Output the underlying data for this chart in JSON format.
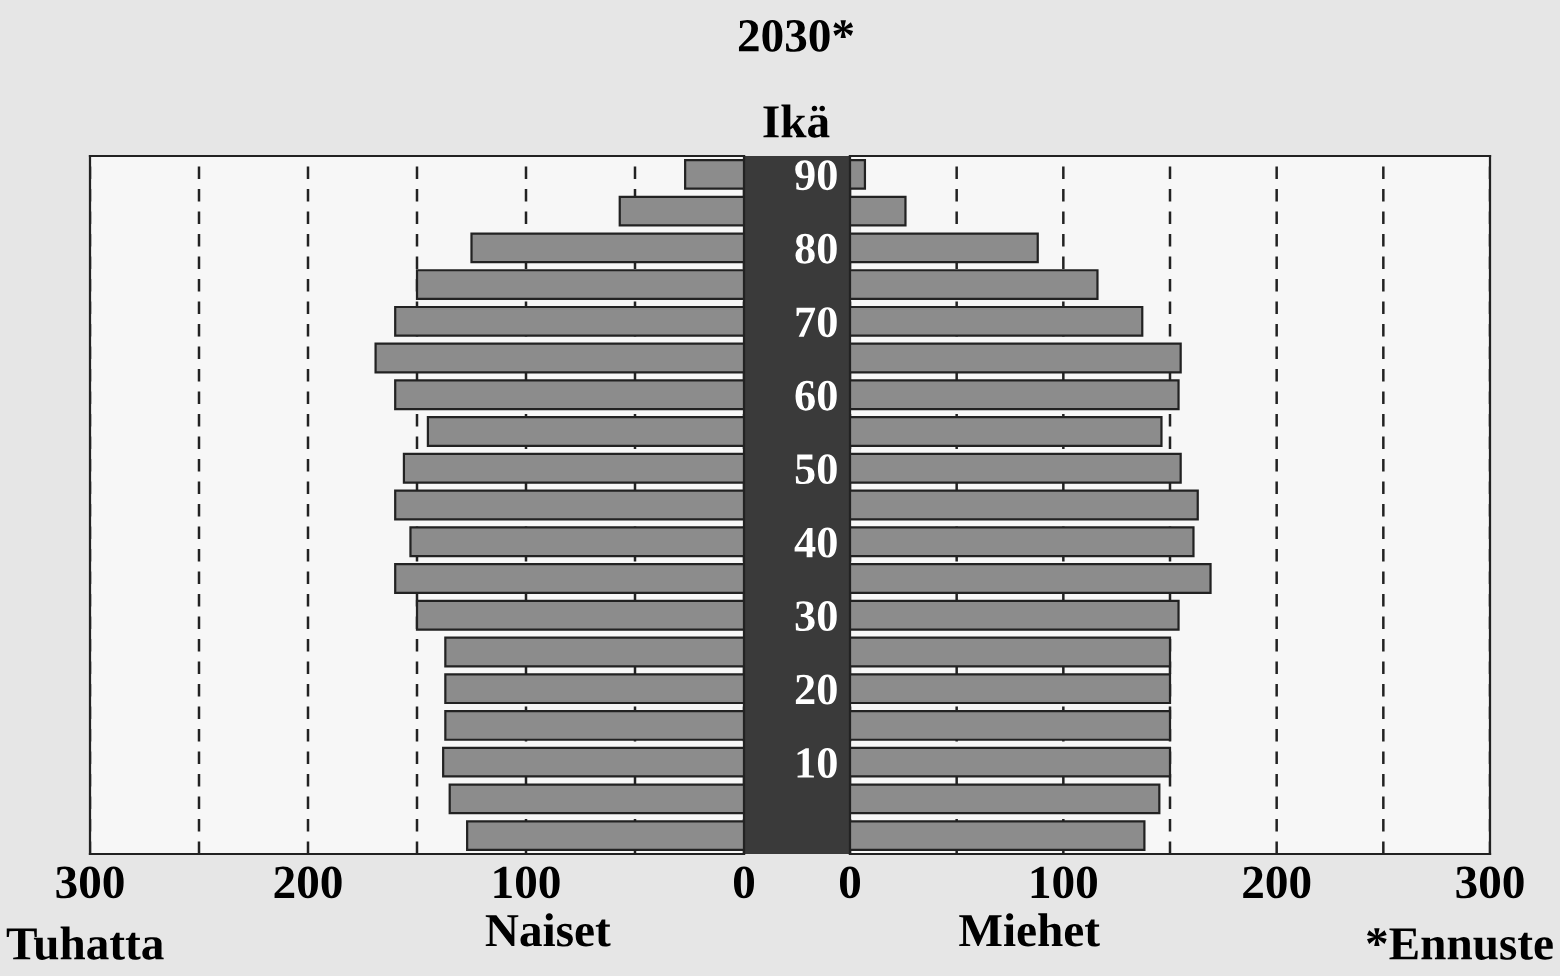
{
  "chart_data": [
    {
      "type": "bar",
      "orientation": "horizontal",
      "title": "2030*",
      "ylabel": "Ikä",
      "xlabel": "Naiset",
      "annotations": [
        "Tuhatta"
      ],
      "categories": [
        "90",
        null,
        "80",
        null,
        "70",
        null,
        "60",
        null,
        "50",
        null,
        "40",
        null,
        "30",
        null,
        "20",
        null,
        "10",
        null,
        null
      ],
      "values": [
        27,
        57,
        125,
        150,
        160,
        169,
        160,
        145,
        156,
        160,
        153,
        160,
        150,
        137,
        137,
        137,
        138,
        135,
        127
      ],
      "color": "#8c8c8c",
      "xlim": [
        300,
        0
      ],
      "xticks": [
        {
          "value": 300,
          "label": "300"
        },
        {
          "value": 250,
          "label": null
        },
        {
          "value": 200,
          "label": "200"
        },
        {
          "value": 150,
          "label": null
        },
        {
          "value": 100,
          "label": "100"
        },
        {
          "value": 50,
          "label": null
        },
        {
          "value": 0,
          "label": "0"
        }
      ],
      "grid": "x"
    },
    {
      "type": "bar",
      "orientation": "horizontal",
      "xlabel": "Miehet",
      "annotations": [
        "*Ennuste"
      ],
      "categories": [
        null,
        null,
        null,
        null,
        null,
        null,
        null,
        null,
        null,
        null,
        null,
        null,
        null,
        null,
        null,
        null,
        null,
        null,
        null
      ],
      "values": [
        7,
        26,
        88,
        116,
        137,
        155,
        154,
        146,
        155,
        163,
        161,
        169,
        154,
        150,
        150,
        150,
        150,
        145,
        138
      ],
      "color": "#8c8c8c",
      "xlim": [
        0,
        300
      ],
      "xticks": [
        {
          "value": 0,
          "label": "0"
        },
        {
          "value": 50,
          "label": null
        },
        {
          "value": 100,
          "label": "100"
        },
        {
          "value": 150,
          "label": null
        },
        {
          "value": 200,
          "label": "200"
        },
        {
          "value": 250,
          "label": null
        },
        {
          "value": 300,
          "label": "300"
        }
      ],
      "grid": "x"
    }
  ]
}
